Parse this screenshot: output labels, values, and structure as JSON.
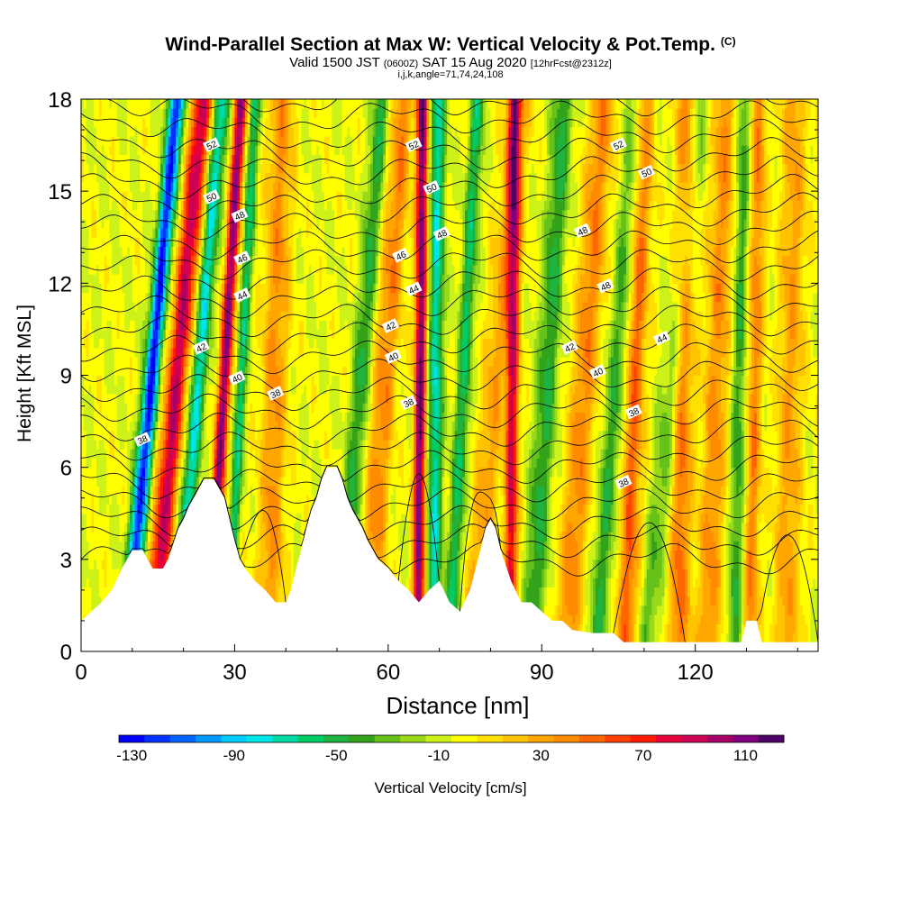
{
  "header": {
    "title": "Wind-Parallel Section at Max W: Vertical Velocity & Pot.Temp.",
    "title_mark": "(C)",
    "subtitle_a": "Valid 1500 JST",
    "subtitle_b": "(0600Z)",
    "subtitle_c": "SAT 15 Aug 2020",
    "subtitle_d": "[12hrFcst@2312z]",
    "indices": "i,j,k,angle=71,74,24,108"
  },
  "chart_data": {
    "type": "heatmap",
    "xlabel": "Distance [nm]",
    "ylabel": "Height [Kft MSL]",
    "xlim": [
      0,
      144
    ],
    "ylim": [
      0,
      18
    ],
    "x_ticks": [
      0,
      30,
      60,
      90,
      120
    ],
    "y_ticks": [
      0,
      3,
      6,
      9,
      12,
      15,
      18
    ],
    "colorbar": {
      "label": "Vertical Velocity [cm/s]",
      "min": -130,
      "max": 130,
      "step": 10,
      "tick_labels": [
        -130,
        -90,
        -50,
        -10,
        30,
        70,
        110
      ],
      "colors": [
        "#0000ff",
        "#0033ff",
        "#0066ff",
        "#0099ff",
        "#00ccff",
        "#00e6e6",
        "#00d9a6",
        "#00cc66",
        "#1fb33f",
        "#33a31a",
        "#66c21a",
        "#99d91a",
        "#ccf21a",
        "#ffff00",
        "#ffe000",
        "#ffc300",
        "#ffa600",
        "#ff8c00",
        "#ff6600",
        "#ff4000",
        "#ff1a00",
        "#e6003a",
        "#cc0055",
        "#a60066",
        "#800080",
        "#4d0066"
      ]
    },
    "contour_field": "potential temperature",
    "contour_labels": [
      {
        "x": 12.0,
        "y": 6.9,
        "text": "38"
      },
      {
        "x": 38.0,
        "y": 8.4,
        "text": "38"
      },
      {
        "x": 64.0,
        "y": 8.1,
        "text": "38"
      },
      {
        "x": 108.0,
        "y": 7.8,
        "text": "38"
      },
      {
        "x": 106.0,
        "y": 5.5,
        "text": "38"
      },
      {
        "x": 30.5,
        "y": 8.9,
        "text": "40"
      },
      {
        "x": 61.0,
        "y": 9.6,
        "text": "40"
      },
      {
        "x": 101.0,
        "y": 9.1,
        "text": "40"
      },
      {
        "x": 23.5,
        "y": 9.9,
        "text": "42"
      },
      {
        "x": 60.5,
        "y": 10.6,
        "text": "42"
      },
      {
        "x": 95.5,
        "y": 9.9,
        "text": "42"
      },
      {
        "x": 113.5,
        "y": 10.2,
        "text": "44"
      },
      {
        "x": 31.5,
        "y": 11.6,
        "text": "44"
      },
      {
        "x": 65.0,
        "y": 11.8,
        "text": "44"
      },
      {
        "x": 31.5,
        "y": 12.8,
        "text": "46"
      },
      {
        "x": 62.5,
        "y": 12.9,
        "text": "46"
      },
      {
        "x": 70.5,
        "y": 13.6,
        "text": "48"
      },
      {
        "x": 98.0,
        "y": 13.7,
        "text": "48"
      },
      {
        "x": 102.5,
        "y": 11.9,
        "text": "48"
      },
      {
        "x": 31.0,
        "y": 14.2,
        "text": "48"
      },
      {
        "x": 25.5,
        "y": 14.8,
        "text": "50"
      },
      {
        "x": 68.5,
        "y": 15.1,
        "text": "50"
      },
      {
        "x": 110.5,
        "y": 15.6,
        "text": "50"
      },
      {
        "x": 25.5,
        "y": 16.5,
        "text": "52"
      },
      {
        "x": 65.0,
        "y": 16.5,
        "text": "52"
      },
      {
        "x": 105.0,
        "y": 16.5,
        "text": "52"
      }
    ],
    "terrain_heights": [
      [
        0,
        1.0
      ],
      [
        2,
        1.3
      ],
      [
        4,
        1.6
      ],
      [
        6,
        2.0
      ],
      [
        8,
        2.7
      ],
      [
        9,
        3.0
      ],
      [
        10,
        3.3
      ],
      [
        12,
        3.3
      ],
      [
        13,
        3.0
      ],
      [
        14,
        2.7
      ],
      [
        16,
        2.7
      ],
      [
        17,
        3.0
      ],
      [
        18,
        3.5
      ],
      [
        19,
        4.0
      ],
      [
        20,
        4.3
      ],
      [
        21,
        4.7
      ],
      [
        22,
        5.0
      ],
      [
        23,
        5.3
      ],
      [
        24,
        5.6
      ],
      [
        26,
        5.6
      ],
      [
        27,
        5.3
      ],
      [
        28,
        5.0
      ],
      [
        29,
        4.3
      ],
      [
        30,
        3.6
      ],
      [
        31,
        3.0
      ],
      [
        32,
        2.7
      ],
      [
        34,
        2.3
      ],
      [
        36,
        2.0
      ],
      [
        38,
        1.6
      ],
      [
        40,
        1.6
      ],
      [
        41,
        2.0
      ],
      [
        42,
        2.7
      ],
      [
        43,
        3.3
      ],
      [
        44,
        4.0
      ],
      [
        45,
        4.6
      ],
      [
        46,
        5.0
      ],
      [
        47,
        5.6
      ],
      [
        48,
        6.0
      ],
      [
        50,
        6.0
      ],
      [
        51,
        5.6
      ],
      [
        52,
        5.0
      ],
      [
        53,
        4.6
      ],
      [
        55,
        4.0
      ],
      [
        56,
        3.6
      ],
      [
        58,
        3.0
      ],
      [
        60,
        2.7
      ],
      [
        62,
        2.3
      ],
      [
        64,
        2.0
      ],
      [
        66,
        1.6
      ],
      [
        68,
        2.0
      ],
      [
        70,
        2.3
      ],
      [
        72,
        1.6
      ],
      [
        74,
        1.3
      ],
      [
        76,
        2.0
      ],
      [
        78,
        3.3
      ],
      [
        79,
        4.0
      ],
      [
        80,
        4.3
      ],
      [
        81,
        4.0
      ],
      [
        82,
        3.3
      ],
      [
        84,
        2.3
      ],
      [
        86,
        1.6
      ],
      [
        88,
        1.6
      ],
      [
        90,
        1.3
      ],
      [
        92,
        1.0
      ],
      [
        94,
        1.0
      ],
      [
        96,
        0.7
      ],
      [
        100,
        0.6
      ],
      [
        104,
        0.6
      ],
      [
        106,
        0.3
      ],
      [
        120,
        0.3
      ],
      [
        126,
        0.3
      ],
      [
        129,
        0.3
      ],
      [
        130,
        1.0
      ],
      [
        132,
        1.0
      ],
      [
        133,
        0.3
      ],
      [
        138,
        0.3
      ],
      [
        144,
        0.3
      ]
    ]
  }
}
